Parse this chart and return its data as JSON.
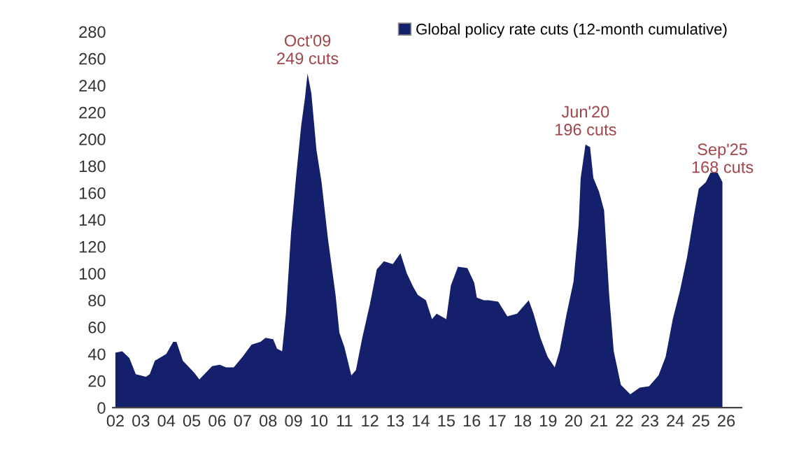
{
  "chart_data": {
    "type": "area",
    "legend": "top right",
    "grid": false,
    "xlim": [
      2001.9,
      2026.6
    ],
    "ylim": [
      0,
      280
    ],
    "yticks": [
      0,
      20,
      40,
      60,
      80,
      100,
      120,
      140,
      160,
      180,
      200,
      220,
      240,
      260,
      280
    ],
    "xticks": [
      {
        "value": 2002,
        "label": "02"
      },
      {
        "value": 2003,
        "label": "03"
      },
      {
        "value": 2004,
        "label": "04"
      },
      {
        "value": 2005,
        "label": "05"
      },
      {
        "value": 2006,
        "label": "06"
      },
      {
        "value": 2007,
        "label": "07"
      },
      {
        "value": 2008,
        "label": "08"
      },
      {
        "value": 2009,
        "label": "09"
      },
      {
        "value": 2010,
        "label": "10"
      },
      {
        "value": 2011,
        "label": "11"
      },
      {
        "value": 2012,
        "label": "12"
      },
      {
        "value": 2013,
        "label": "13"
      },
      {
        "value": 2014,
        "label": "14"
      },
      {
        "value": 2015,
        "label": "15"
      },
      {
        "value": 2016,
        "label": "16"
      },
      {
        "value": 2017,
        "label": "17"
      },
      {
        "value": 2018,
        "label": "18"
      },
      {
        "value": 2019,
        "label": "19"
      },
      {
        "value": 2020,
        "label": "20"
      },
      {
        "value": 2021,
        "label": "21"
      },
      {
        "value": 2022,
        "label": "22"
      },
      {
        "value": 2023,
        "label": "23"
      },
      {
        "value": 2024,
        "label": "24"
      },
      {
        "value": 2025,
        "label": "25"
      },
      {
        "value": 2026,
        "label": "26"
      }
    ],
    "x": [
      2002.0,
      2002.27,
      2002.55,
      2002.8,
      2003.2,
      2003.35,
      2003.55,
      2004.0,
      2004.27,
      2004.4,
      2004.65,
      2004.9,
      2005.1,
      2005.3,
      2005.55,
      2005.8,
      2006.1,
      2006.35,
      2006.65,
      2007.0,
      2007.35,
      2007.7,
      2007.9,
      2008.2,
      2008.35,
      2008.55,
      2008.7,
      2008.9,
      2009.1,
      2009.3,
      2009.45,
      2009.55,
      2009.7,
      2009.9,
      2010.1,
      2010.35,
      2010.65,
      2010.8,
      2011.0,
      2011.27,
      2011.45,
      2011.7,
      2012.0,
      2012.27,
      2012.55,
      2012.9,
      2013.2,
      2013.45,
      2013.7,
      2013.88,
      2014.2,
      2014.44,
      2014.62,
      2015.0,
      2015.18,
      2015.46,
      2015.83,
      2016.1,
      2016.2,
      2016.48,
      2016.67,
      2017.04,
      2017.4,
      2017.78,
      2018.24,
      2018.43,
      2018.7,
      2018.98,
      2019.26,
      2019.45,
      2019.73,
      2020.0,
      2020.2,
      2020.28,
      2020.47,
      2020.65,
      2020.78,
      2021.0,
      2021.2,
      2021.4,
      2021.58,
      2021.86,
      2022.23,
      2022.6,
      2022.97,
      2023.34,
      2023.62,
      2023.9,
      2024.18,
      2024.46,
      2024.73,
      2024.92,
      2025.2,
      2025.38,
      2025.66,
      2025.85
    ],
    "series": [
      {
        "name": "Global policy rate cuts (12-month cumulative)",
        "color": "#14206b",
        "values": [
          41,
          42,
          37,
          25,
          23,
          25,
          35,
          40,
          49,
          49,
          35,
          30,
          26,
          21,
          26,
          31,
          32,
          30,
          30,
          38,
          47,
          49,
          52,
          51,
          44,
          42,
          70,
          130,
          172,
          210,
          231,
          249,
          234,
          192,
          168,
          126,
          84,
          56,
          45,
          24,
          28,
          52,
          77,
          103,
          109,
          107,
          115,
          100,
          90,
          84,
          80,
          66,
          70,
          66,
          91,
          105,
          104,
          93,
          82,
          80,
          80,
          79,
          68,
          70,
          80,
          70,
          52,
          38,
          30,
          42,
          70,
          94,
          136,
          171,
          196,
          194,
          171,
          161,
          147,
          84,
          42,
          17,
          10,
          15,
          16,
          24,
          38,
          66,
          87,
          112,
          143,
          163,
          168,
          175,
          175,
          168
        ]
      }
    ],
    "annotations": [
      {
        "text": "Oct'09\n249 cuts",
        "x": 2009.55,
        "y": 249
      },
      {
        "text": "Jun'20\n196 cuts",
        "x": 2020.47,
        "y": 196
      },
      {
        "text": "Sep'25\n168 cuts",
        "x": 2025.85,
        "y": 168
      }
    ]
  }
}
